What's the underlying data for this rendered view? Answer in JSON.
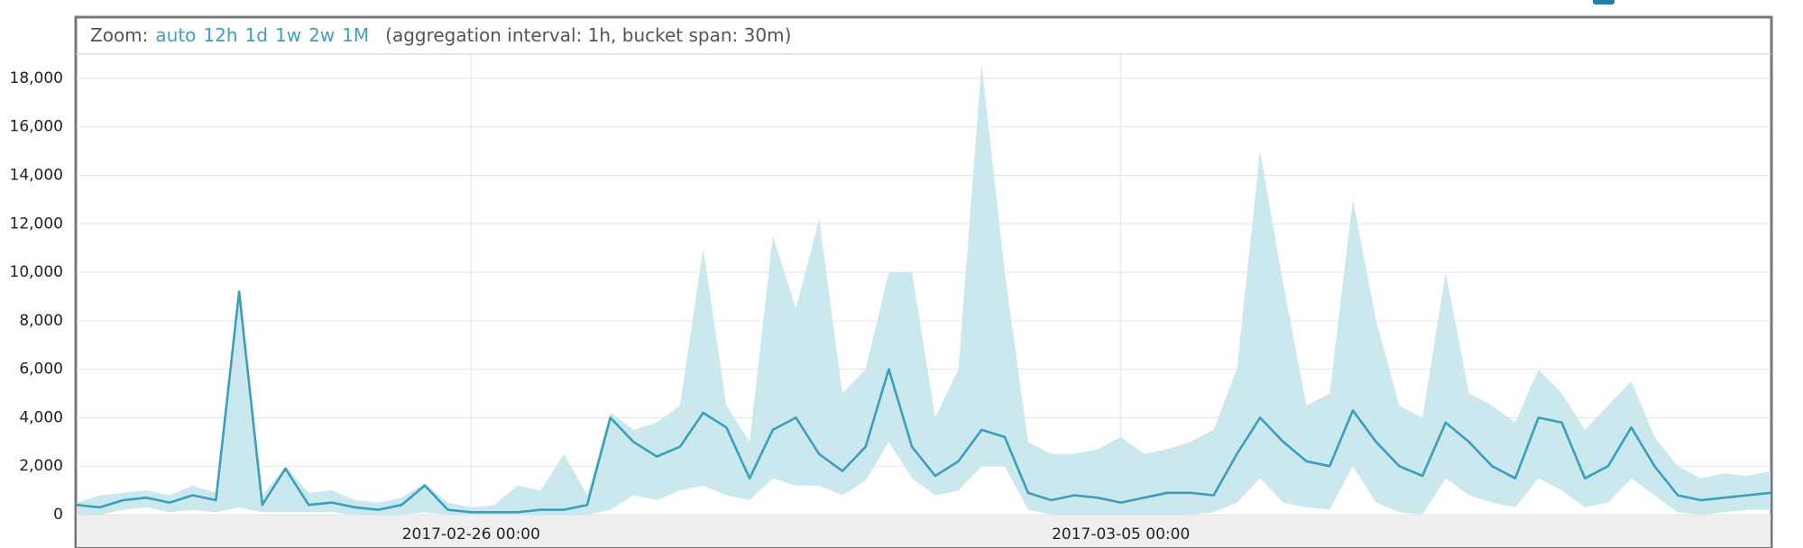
{
  "controls": {
    "zoom_label": "Zoom:",
    "zoom_options": [
      "auto",
      "12h",
      "1d",
      "1w",
      "2w",
      "1M"
    ],
    "note": "(aggregation interval: 1h, bucket span: 30m)"
  },
  "chart_data": {
    "type": "line_band",
    "x": [
      "2017-02-21 18:00",
      "2017-02-22 00:00",
      "2017-02-22 06:00",
      "2017-02-22 12:00",
      "2017-02-22 18:00",
      "2017-02-23 00:00",
      "2017-02-23 06:00",
      "2017-02-23 12:00",
      "2017-02-23 18:00",
      "2017-02-24 00:00",
      "2017-02-24 06:00",
      "2017-02-24 12:00",
      "2017-02-24 18:00",
      "2017-02-25 00:00",
      "2017-02-25 06:00",
      "2017-02-25 12:00",
      "2017-02-25 18:00",
      "2017-02-26 00:00",
      "2017-02-26 06:00",
      "2017-02-26 12:00",
      "2017-02-26 18:00",
      "2017-02-27 00:00",
      "2017-02-27 06:00",
      "2017-02-27 12:00",
      "2017-02-27 18:00",
      "2017-02-28 00:00",
      "2017-02-28 06:00",
      "2017-02-28 12:00",
      "2017-02-28 18:00",
      "2017-03-01 00:00",
      "2017-03-01 06:00",
      "2017-03-01 12:00",
      "2017-03-01 18:00",
      "2017-03-02 00:00",
      "2017-03-02 06:00",
      "2017-03-02 12:00",
      "2017-03-02 18:00",
      "2017-03-03 00:00",
      "2017-03-03 06:00",
      "2017-03-03 12:00",
      "2017-03-03 18:00",
      "2017-03-04 00:00",
      "2017-03-04 06:00",
      "2017-03-04 12:00",
      "2017-03-04 18:00",
      "2017-03-05 00:00",
      "2017-03-05 06:00",
      "2017-03-05 12:00",
      "2017-03-05 18:00",
      "2017-03-06 00:00",
      "2017-03-06 06:00",
      "2017-03-06 12:00",
      "2017-03-06 18:00",
      "2017-03-07 00:00",
      "2017-03-07 06:00",
      "2017-03-07 12:00",
      "2017-03-07 18:00",
      "2017-03-08 00:00",
      "2017-03-08 06:00",
      "2017-03-08 12:00",
      "2017-03-08 18:00",
      "2017-03-09 00:00",
      "2017-03-09 06:00",
      "2017-03-09 12:00",
      "2017-03-09 18:00",
      "2017-03-10 00:00",
      "2017-03-10 06:00",
      "2017-03-10 12:00",
      "2017-03-10 18:00",
      "2017-03-11 00:00",
      "2017-03-11 06:00",
      "2017-03-11 12:00",
      "2017-03-11 18:00",
      "2017-03-12 00:00"
    ],
    "values": [
      400,
      300,
      600,
      700,
      500,
      800,
      600,
      9200,
      400,
      1900,
      400,
      500,
      300,
      200,
      400,
      1200,
      200,
      100,
      100,
      100,
      200,
      200,
      400,
      4000,
      3000,
      2400,
      2800,
      4200,
      3600,
      1500,
      3500,
      4000,
      2500,
      1800,
      2800,
      6000,
      2800,
      1600,
      2200,
      3500,
      3200,
      900,
      600,
      800,
      700,
      500,
      700,
      900,
      900,
      800,
      2500,
      4000,
      3000,
      2200,
      2000,
      4300,
      3000,
      2000,
      1600,
      3800,
      3000,
      2000,
      1500,
      4000,
      3800,
      1500,
      2000,
      3600,
      2000,
      800,
      600,
      700,
      800,
      900
    ],
    "upper": [
      500,
      800,
      900,
      1000,
      800,
      1200,
      900,
      9300,
      800,
      2000,
      900,
      1000,
      600,
      500,
      700,
      1300,
      500,
      300,
      400,
      1200,
      1000,
      2500,
      800,
      4200,
      3500,
      3800,
      4500,
      11000,
      4500,
      3000,
      11500,
      8500,
      12200,
      5000,
      6000,
      10000,
      10000,
      4000,
      6000,
      18600,
      10000,
      3000,
      2500,
      2500,
      2700,
      3200,
      2500,
      2700,
      3000,
      3500,
      6000,
      15000,
      9500,
      4500,
      5000,
      13000,
      8000,
      4500,
      4000,
      10000,
      5000,
      4500,
      3800,
      6000,
      5000,
      3500,
      4500,
      5500,
      3200,
      2000,
      1500,
      1700,
      1600,
      1800
    ],
    "lower": [
      0,
      0,
      200,
      300,
      100,
      200,
      100,
      300,
      100,
      100,
      100,
      100,
      0,
      0,
      0,
      100,
      0,
      0,
      0,
      0,
      0,
      0,
      0,
      200,
      800,
      600,
      1000,
      1200,
      800,
      600,
      1500,
      1200,
      1200,
      800,
      1400,
      3000,
      1500,
      800,
      1000,
      2000,
      2000,
      200,
      0,
      0,
      0,
      0,
      0,
      0,
      0,
      100,
      500,
      1500,
      500,
      300,
      200,
      2000,
      500,
      100,
      0,
      1500,
      800,
      500,
      300,
      1500,
      1000,
      300,
      500,
      1500,
      800,
      100,
      0,
      100,
      200,
      200
    ],
    "color": "#3a9fbb",
    "band_color": "#cbe8ef",
    "xlim": [
      "2017-02-21 18:00",
      "2017-03-12 00:00"
    ],
    "xticks": [
      "2017-02-26 00:00",
      "2017-03-05 00:00"
    ],
    "ylim": [
      0,
      19000
    ],
    "yticks": [
      0,
      {
        "value": 2000,
        "label": "2,000"
      },
      {
        "value": 4000,
        "label": "4,000"
      },
      {
        "value": 6000,
        "label": "6,000"
      },
      {
        "value": 8000,
        "label": "8,000"
      },
      {
        "value": 10000,
        "label": "10,000"
      },
      {
        "value": 12000,
        "label": "12,000"
      },
      {
        "value": 14000,
        "label": "14,000"
      },
      {
        "value": 16000,
        "label": "16,000"
      },
      {
        "value": 18000,
        "label": "18,000"
      }
    ],
    "grid": true
  }
}
